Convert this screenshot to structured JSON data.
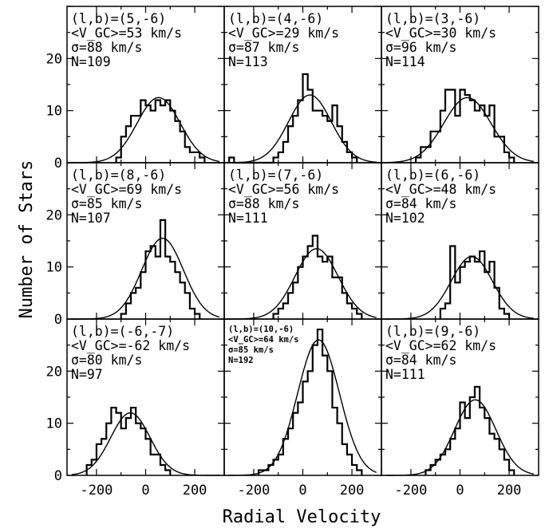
{
  "figure": {
    "xlabel": "Radial Velocity",
    "ylabel": "Number of Stars",
    "y_ticks_top_row": [
      "0",
      "10",
      "20"
    ],
    "y_ticks_mid_row": [
      "0",
      "10",
      "20"
    ],
    "y_ticks_bottom_row": [
      "0",
      "10",
      "20"
    ],
    "x_ticks": [
      "-200",
      "0",
      "200"
    ]
  },
  "chart_data": [
    {
      "type": "bar",
      "panel_labels": [
        "(l,b)=(5,-6)",
        "<V_GC>=53 km/s",
        "σ=88 km/s",
        "N=109"
      ],
      "field": "(5,-6)",
      "mean_velocity": 53,
      "sigma": 88,
      "N": 109,
      "bin_left_edges": [
        -120,
        -100,
        -80,
        -60,
        -40,
        -20,
        0,
        20,
        40,
        60,
        80,
        100,
        120,
        140,
        160,
        180,
        200,
        220
      ],
      "bin_width": 20,
      "values": [
        1,
        5,
        7,
        9,
        9,
        12,
        11,
        10,
        12,
        11,
        12,
        10,
        8,
        6,
        3,
        2,
        2,
        1
      ],
      "gaussian": {
        "mean": 53,
        "sigma": 88,
        "peak": 12.5
      },
      "xlim": [
        -320,
        320
      ],
      "ylim": [
        0,
        30
      ]
    },
    {
      "type": "bar",
      "panel_labels": [
        "(l,b)=(4,-6)",
        "<V_GC>=29 km/s",
        "σ=87 km/s",
        "N=113"
      ],
      "field": "(4,-6)",
      "mean_velocity": 29,
      "sigma": 87,
      "N": 113,
      "bin_left_edges": [
        -300,
        -280,
        -260,
        -240,
        -220,
        -200,
        -180,
        -160,
        -140,
        -120,
        -100,
        -80,
        -60,
        -40,
        -20,
        0,
        20,
        40,
        60,
        80,
        100,
        120,
        140,
        160,
        180,
        200
      ],
      "bin_width": 20,
      "values": [
        1,
        0,
        0,
        0,
        0,
        0,
        0,
        0,
        0,
        1,
        2,
        4,
        7,
        9,
        12,
        17,
        14,
        10,
        10,
        9,
        8,
        11,
        7,
        4,
        2,
        1
      ],
      "gaussian": {
        "mean": 29,
        "sigma": 87,
        "peak": 13
      },
      "xlim": [
        -320,
        320
      ],
      "ylim": [
        0,
        30
      ]
    },
    {
      "type": "bar",
      "panel_labels": [
        "(l,b)=(3,-6)",
        "<V_GC>=30 km/s",
        "σ=96 km/s",
        "N=114"
      ],
      "field": "(3,-6)",
      "mean_velocity": 30,
      "sigma": 96,
      "N": 114,
      "bin_left_edges": [
        -180,
        -160,
        -140,
        -120,
        -100,
        -80,
        -60,
        -40,
        -20,
        0,
        20,
        40,
        60,
        80,
        100,
        120,
        140,
        160,
        180,
        200
      ],
      "bin_width": 20,
      "values": [
        1,
        3,
        3,
        6,
        6,
        10,
        14,
        14,
        9,
        14,
        13,
        12,
        10,
        11,
        9,
        11,
        5,
        5,
        2,
        1
      ],
      "gaussian": {
        "mean": 30,
        "sigma": 96,
        "peak": 12.5
      },
      "xlim": [
        -320,
        320
      ],
      "ylim": [
        0,
        30
      ]
    },
    {
      "type": "bar",
      "panel_labels": [
        "(l,b)=(8,-6)",
        "<V_GC>=69 km/s",
        "σ=85 km/s",
        "N=107"
      ],
      "field": "(8,-6)",
      "mean_velocity": 69,
      "sigma": 85,
      "N": 107,
      "bin_left_edges": [
        -100,
        -80,
        -60,
        -40,
        -20,
        0,
        20,
        40,
        60,
        80,
        100,
        120,
        140,
        160,
        180,
        200
      ],
      "bin_width": 20,
      "values": [
        1,
        3,
        5,
        6,
        9,
        13,
        14,
        12,
        19,
        12,
        11,
        9,
        7,
        5,
        2,
        1
      ],
      "gaussian": {
        "mean": 69,
        "sigma": 85,
        "peak": 15.5
      },
      "xlim": [
        -320,
        320
      ],
      "ylim": [
        0,
        30
      ]
    },
    {
      "type": "bar",
      "panel_labels": [
        "(l,b)=(7,-6)",
        "<V_GC>=56 km/s",
        "σ=88 km/s",
        "N=111"
      ],
      "field": "(7,-6)",
      "mean_velocity": 56,
      "sigma": 88,
      "N": 111,
      "bin_left_edges": [
        -120,
        -100,
        -80,
        -60,
        -40,
        -20,
        0,
        20,
        40,
        60,
        80,
        100,
        120,
        140,
        160,
        180,
        200,
        220
      ],
      "bin_width": 20,
      "values": [
        1,
        2,
        3,
        5,
        7,
        10,
        12,
        14,
        16,
        12,
        11,
        12,
        8,
        8,
        5,
        3,
        2,
        1
      ],
      "gaussian": {
        "mean": 56,
        "sigma": 88,
        "peak": 13.5
      },
      "xlim": [
        -320,
        320
      ],
      "ylim": [
        0,
        30
      ]
    },
    {
      "type": "bar",
      "panel_labels": [
        "(l,b)=(6,-6)",
        "<V_GC>=48 km/s",
        "σ=84 km/s",
        "N=102"
      ],
      "field": "(6,-6)",
      "mean_velocity": 48,
      "sigma": 84,
      "N": 102,
      "bin_left_edges": [
        -80,
        -60,
        -40,
        -20,
        0,
        20,
        40,
        60,
        80,
        100,
        120,
        140,
        160,
        180
      ],
      "bin_width": 20,
      "values": [
        2,
        3,
        14,
        7,
        10,
        11,
        12,
        11,
        13,
        9,
        11,
        6,
        2,
        1
      ],
      "gaussian": {
        "mean": 48,
        "sigma": 84,
        "peak": 12
      },
      "xlim": [
        -320,
        320
      ],
      "ylim": [
        0,
        30
      ]
    },
    {
      "type": "bar",
      "panel_labels": [
        "(l,b)=(-6,-7)",
        "<V_GC>=-62 km/s",
        "σ=80 km/s",
        "N=97"
      ],
      "field": "(-6,-7)",
      "mean_velocity": -62,
      "sigma": 80,
      "N": 97,
      "bin_left_edges": [
        -240,
        -220,
        -200,
        -180,
        -160,
        -140,
        -120,
        -100,
        -80,
        -60,
        -40,
        -20,
        0,
        20,
        40,
        60,
        80
      ],
      "bin_width": 20,
      "values": [
        2,
        3,
        6,
        7,
        10,
        13,
        12,
        9,
        11,
        13,
        10,
        9,
        7,
        4,
        4,
        2,
        1
      ],
      "gaussian": {
        "mean": -62,
        "sigma": 80,
        "peak": 12
      },
      "xlim": [
        -320,
        320
      ],
      "ylim": [
        0,
        30
      ]
    },
    {
      "type": "bar",
      "panel_labels": [
        "(l,b)=(10,-6)",
        "<V_GC>=64 km/s",
        "σ=85 km/s",
        "N=192"
      ],
      "field": "(10,-6)",
      "mean_velocity": 64,
      "sigma": 85,
      "N": 192,
      "bin_left_edges": [
        -180,
        -160,
        -140,
        -120,
        -100,
        -80,
        -60,
        -40,
        -20,
        0,
        20,
        40,
        60,
        80,
        100,
        120,
        140,
        160,
        180,
        200,
        220
      ],
      "bin_width": 20,
      "values": [
        1,
        1,
        2,
        3,
        4,
        7,
        9,
        12,
        14,
        18,
        20,
        25,
        28,
        23,
        20,
        13,
        10,
        6,
        4,
        2,
        1
      ],
      "gaussian": {
        "mean": 64,
        "sigma": 85,
        "peak": 26
      },
      "xlim": [
        -320,
        320
      ],
      "ylim": [
        0,
        30
      ]
    },
    {
      "type": "bar",
      "panel_labels": [
        "(l,b)=(9,-6)",
        "<V_GC>=62 km/s",
        "σ=84 km/s",
        "N=111"
      ],
      "field": "(9,-6)",
      "mean_velocity": 62,
      "sigma": 84,
      "N": 111,
      "bin_left_edges": [
        -140,
        -120,
        -100,
        -80,
        -60,
        -40,
        -20,
        0,
        20,
        40,
        60,
        80,
        100,
        120,
        140,
        160,
        180,
        200
      ],
      "bin_width": 20,
      "values": [
        1,
        2,
        3,
        4,
        5,
        7,
        9,
        14,
        11,
        15,
        17,
        13,
        11,
        8,
        7,
        5,
        3,
        1
      ],
      "gaussian": {
        "mean": 62,
        "sigma": 84,
        "peak": 14.5
      },
      "xlim": [
        -320,
        320
      ],
      "ylim": [
        0,
        30
      ]
    }
  ]
}
